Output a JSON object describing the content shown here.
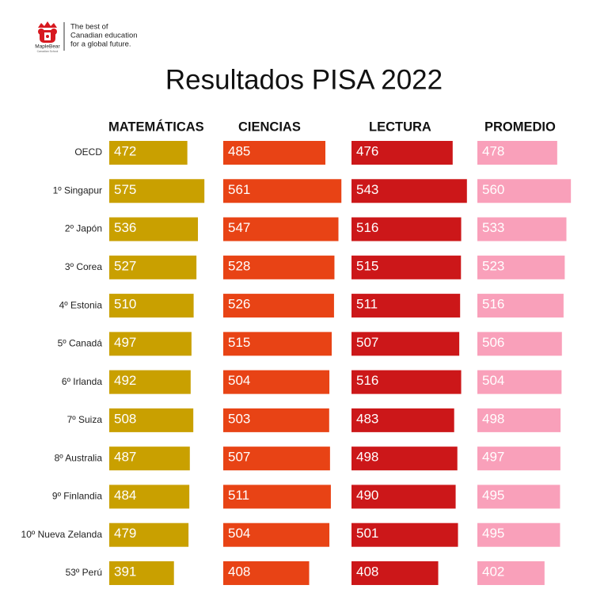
{
  "logo": {
    "brand": "MapleBear",
    "sub": "Canadian School",
    "tagline": [
      "The best of",
      "Canadian education",
      "for a global future."
    ]
  },
  "chart_data": {
    "type": "bar",
    "orientation": "horizontal",
    "title": "Resultados PISA 2022",
    "categories": [
      "OECD",
      "1º Singapur",
      "2º Japón",
      "3º Corea",
      "4º Estonia",
      "5º Canadá",
      "6º Irlanda",
      "7º Suiza",
      "8º Australia",
      "9º Finlandia",
      "10º Nueva Zelanda",
      "53º Perú"
    ],
    "series": [
      {
        "name": "MATEMÁTICAS",
        "color": "#c9a000",
        "values": [
          472,
          575,
          536,
          527,
          510,
          497,
          492,
          508,
          487,
          484,
          479,
          391
        ]
      },
      {
        "name": "CIENCIAS",
        "color": "#e84315",
        "values": [
          485,
          561,
          547,
          528,
          526,
          515,
          504,
          503,
          507,
          511,
          504,
          408
        ]
      },
      {
        "name": "LECTURA",
        "color": "#cc1719",
        "values": [
          476,
          543,
          516,
          515,
          511,
          507,
          516,
          483,
          498,
          490,
          501,
          408
        ]
      },
      {
        "name": "PROMEDIO",
        "color": "#f9a0ba",
        "values": [
          478,
          560,
          533,
          523,
          516,
          506,
          504,
          498,
          497,
          495,
          495,
          402
        ]
      }
    ]
  }
}
